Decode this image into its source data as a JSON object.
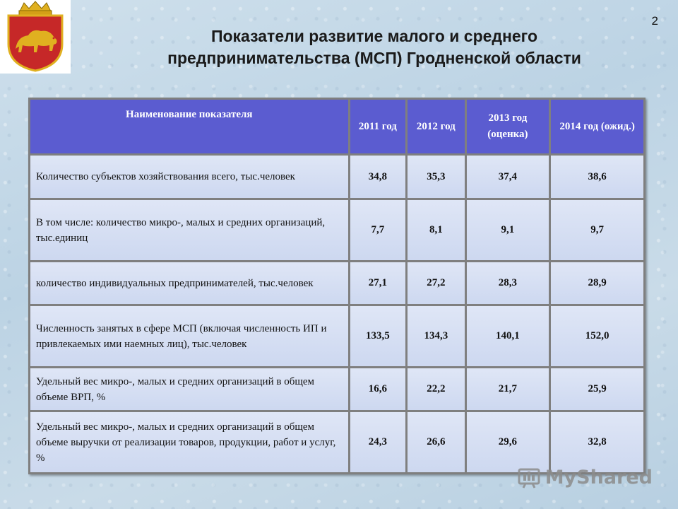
{
  "page_number": "2",
  "title_line1": "Показатели развитие малого и среднего",
  "title_line2": "предпринимательства (МСП) Гродненской области",
  "table": {
    "headers": [
      "Наименование показателя",
      "2011 год",
      "2012 год",
      "2013 год (оценка)",
      "2014 год (ожид.)"
    ],
    "rows": [
      {
        "label": "Количество субъектов хозяйствования всего, тыс.человек",
        "values": [
          "34,8",
          "35,3",
          "37,4",
          "38,6"
        ]
      },
      {
        "label": "В том числе: количество микро-, малых и средних организаций, тыс.единиц",
        "values": [
          "7,7",
          "8,1",
          "9,1",
          "9,7"
        ]
      },
      {
        "label": "количество индивидуальных предпринимателей, тыс.человек",
        "values": [
          "27,1",
          "27,2",
          "28,3",
          "28,9"
        ]
      },
      {
        "label": "Численность занятых в сфере МСП (включая численность ИП и привлекаемых ими наемных лиц), тыс.человек",
        "values": [
          "133,5",
          "134,3",
          "140,1",
          "152,0"
        ]
      },
      {
        "label": "Удельный вес микро-, малых и средних организаций в общем объеме ВРП, %",
        "values": [
          "16,6",
          "22,2",
          "21,7",
          "25,9"
        ]
      },
      {
        "label": "Удельный вес микро-, малых и средних организаций в общем объеме выручки от реализации товаров, продукции, работ и услуг, %",
        "values": [
          "24,3",
          "26,6",
          "29,6",
          "32,8"
        ]
      }
    ]
  },
  "watermark": "MyShared",
  "emblem_icon": "coat-of-arms-bison",
  "colors": {
    "header_bg": "#5b5cd0",
    "cell_bg": "#d6def3",
    "shield_red": "#c62828",
    "gold": "#e0b020"
  }
}
